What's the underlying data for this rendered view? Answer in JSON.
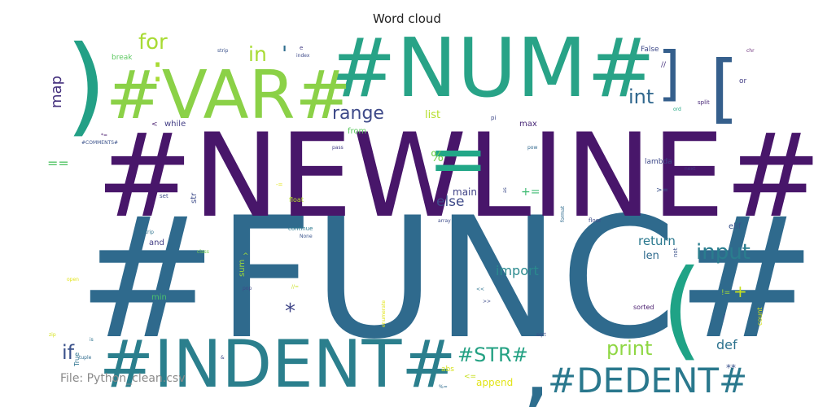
{
  "chart_data": {
    "type": "wordcloud",
    "title": "Word cloud",
    "words": [
      {
        "text": "#FUNC#",
        "color": "#2f6a8d"
      },
      {
        "text": "#NEWLINE#",
        "color": "#48166a"
      },
      {
        "text": "#NUM#",
        "color": "#28a387"
      },
      {
        "text": "#VAR#",
        "color": "#8bd147"
      },
      {
        "text": "#INDENT#",
        "color": "#2b7f8d"
      },
      {
        "text": "#DEDENT#",
        "color": "#2a788d"
      },
      {
        "text": ")",
        "color": "#23a086"
      },
      {
        "text": "(",
        "color": "#1fa386"
      },
      {
        "text": "]",
        "color": "#355f8c"
      },
      {
        "text": "[",
        "color": "#355f8c"
      },
      {
        "text": "=",
        "color": "#22a787"
      },
      {
        "text": ",",
        "color": "#2e6e8e"
      },
      {
        "text": "#STR#",
        "color": "#24a183"
      },
      {
        "text": "range",
        "color": "#3e4a89"
      },
      {
        "text": "int",
        "color": "#31688e"
      },
      {
        "text": "input",
        "color": "#2a7d8e"
      },
      {
        "text": "print",
        "color": "#8fd744"
      },
      {
        "text": "for",
        "color": "#a8db34"
      },
      {
        "text": "in",
        "color": "#a8db34"
      },
      {
        "text": ":",
        "color": "#a8db34"
      },
      {
        "text": "map",
        "color": "#46327e"
      },
      {
        "text": "if",
        "color": "#3b528b"
      },
      {
        "text": "else",
        "color": "#3e4a89"
      },
      {
        "text": "import",
        "color": "#2b8a8e"
      },
      {
        "text": "return",
        "color": "#2a788e"
      },
      {
        "text": "def",
        "color": "#2c728e"
      },
      {
        "text": "*",
        "color": "#404688"
      },
      {
        "text": "+",
        "color": "#c8e020"
      },
      {
        "text": "%",
        "color": "#7ad151"
      },
      {
        "text": "+=",
        "color": "#3fbc73"
      },
      {
        "text": "main",
        "color": "#414487"
      },
      {
        "text": "list",
        "color": "#b5de2b"
      },
      {
        "text": "len",
        "color": "#2f6b8e"
      },
      {
        "text": "==",
        "color": "#54c568"
      },
      {
        "text": "while",
        "color": "#433e85"
      },
      {
        "text": "max",
        "color": "#482878"
      },
      {
        "text": "from",
        "color": "#5ec962"
      },
      {
        "text": "min",
        "color": "#4ac16d"
      },
      {
        "text": "and",
        "color": "#433e85"
      },
      {
        "text": "sum",
        "color": "#a0da39"
      },
      {
        "text": "str",
        "color": "#3e4c8a"
      },
      {
        "text": "'",
        "color": "#2e6d8e"
      },
      {
        "text": "append",
        "color": "#e2e418"
      },
      {
        "text": "elif",
        "color": "#3a548c"
      },
      {
        "text": "break",
        "color": "#5ec962"
      },
      {
        "text": "lambda",
        "color": "#3e4a89"
      },
      {
        "text": "sorted",
        "color": "#481b6d"
      },
      {
        "text": "//",
        "color": "#46327e"
      },
      {
        "text": "False",
        "color": "#3e4a89"
      },
      {
        "text": "**",
        "color": "#3b528b"
      },
      {
        "text": "<",
        "color": "#481f70"
      },
      {
        "text": "ord",
        "color": "#22a884"
      },
      {
        "text": "chr",
        "color": "#6a2c78"
      },
      {
        "text": "or",
        "color": "#433e85"
      },
      {
        "text": "split",
        "color": "#482878"
      },
      {
        "text": "next",
        "color": "#443983"
      },
      {
        "text": ">=",
        "color": "#3b528b"
      },
      {
        "text": "floor",
        "color": "#3e4c8a"
      },
      {
        "text": "continue",
        "color": "#2a788e"
      },
      {
        "text": "None",
        "color": "#3a548c"
      },
      {
        "text": "class",
        "color": "#7ad151"
      },
      {
        "text": "set",
        "color": "#3e4c8a"
      },
      {
        "text": "float",
        "color": "#b5de2b"
      },
      {
        "text": "pass",
        "color": "#433e85"
      },
      {
        "text": "pow",
        "color": "#31688e"
      },
      {
        "text": "pi",
        "color": "#3e4989"
      },
      {
        "text": "abs",
        "color": "#d5e21a"
      },
      {
        "text": "<=",
        "color": "#c8e020"
      },
      {
        "text": "not",
        "color": "#3b528b"
      },
      {
        "text": "count",
        "color": "#d5e21a"
      },
      {
        "text": "!=",
        "color": "#a8db34"
      },
      {
        "text": "sqrt",
        "color": "#3e4c8a"
      },
      {
        "text": "strip",
        "color": "#3b528b"
      },
      {
        "text": "index",
        "color": "#3e4a89"
      },
      {
        "text": "e",
        "color": "#433e85"
      },
      {
        "text": "array",
        "color": "#3e4c8a"
      },
      {
        "text": "format",
        "color": "#2f6b8e"
      },
      {
        "text": "rstrip",
        "color": "#2c728e"
      },
      {
        "text": "^",
        "color": "#9fda3a"
      },
      {
        "text": "pop",
        "color": "#3e4a89"
      },
      {
        "text": "#COMMENTS#",
        "color": "#3b528b"
      },
      {
        "text": "*=",
        "color": "#481b6d"
      },
      {
        "text": "-=",
        "color": "#e2e418"
      },
      {
        "text": "/",
        "color": "#3e4c8a"
      },
      {
        "text": "tuple",
        "color": "#2f6b8e"
      },
      {
        "text": "True",
        "color": "#2c728e"
      },
      {
        "text": "<<",
        "color": "#2c728e"
      },
      {
        "text": ">>",
        "color": "#3e4c8a"
      },
      {
        "text": "%=",
        "color": "#2f6b8e"
      },
      {
        "text": "//=",
        "color": "#c8e020"
      },
      {
        "text": "open",
        "color": "#e2e418"
      },
      {
        "text": "zip",
        "color": "#d5e21a"
      },
      {
        "text": "is",
        "color": "#2c728e"
      },
      {
        "text": "as",
        "color": "#3e4c8a"
      },
      {
        "text": "&",
        "color": "#3e4c8a"
      },
      {
        "text": "enumerate",
        "color": "#e2e418"
      }
    ]
  },
  "footer": "File: Python_clean.csv"
}
